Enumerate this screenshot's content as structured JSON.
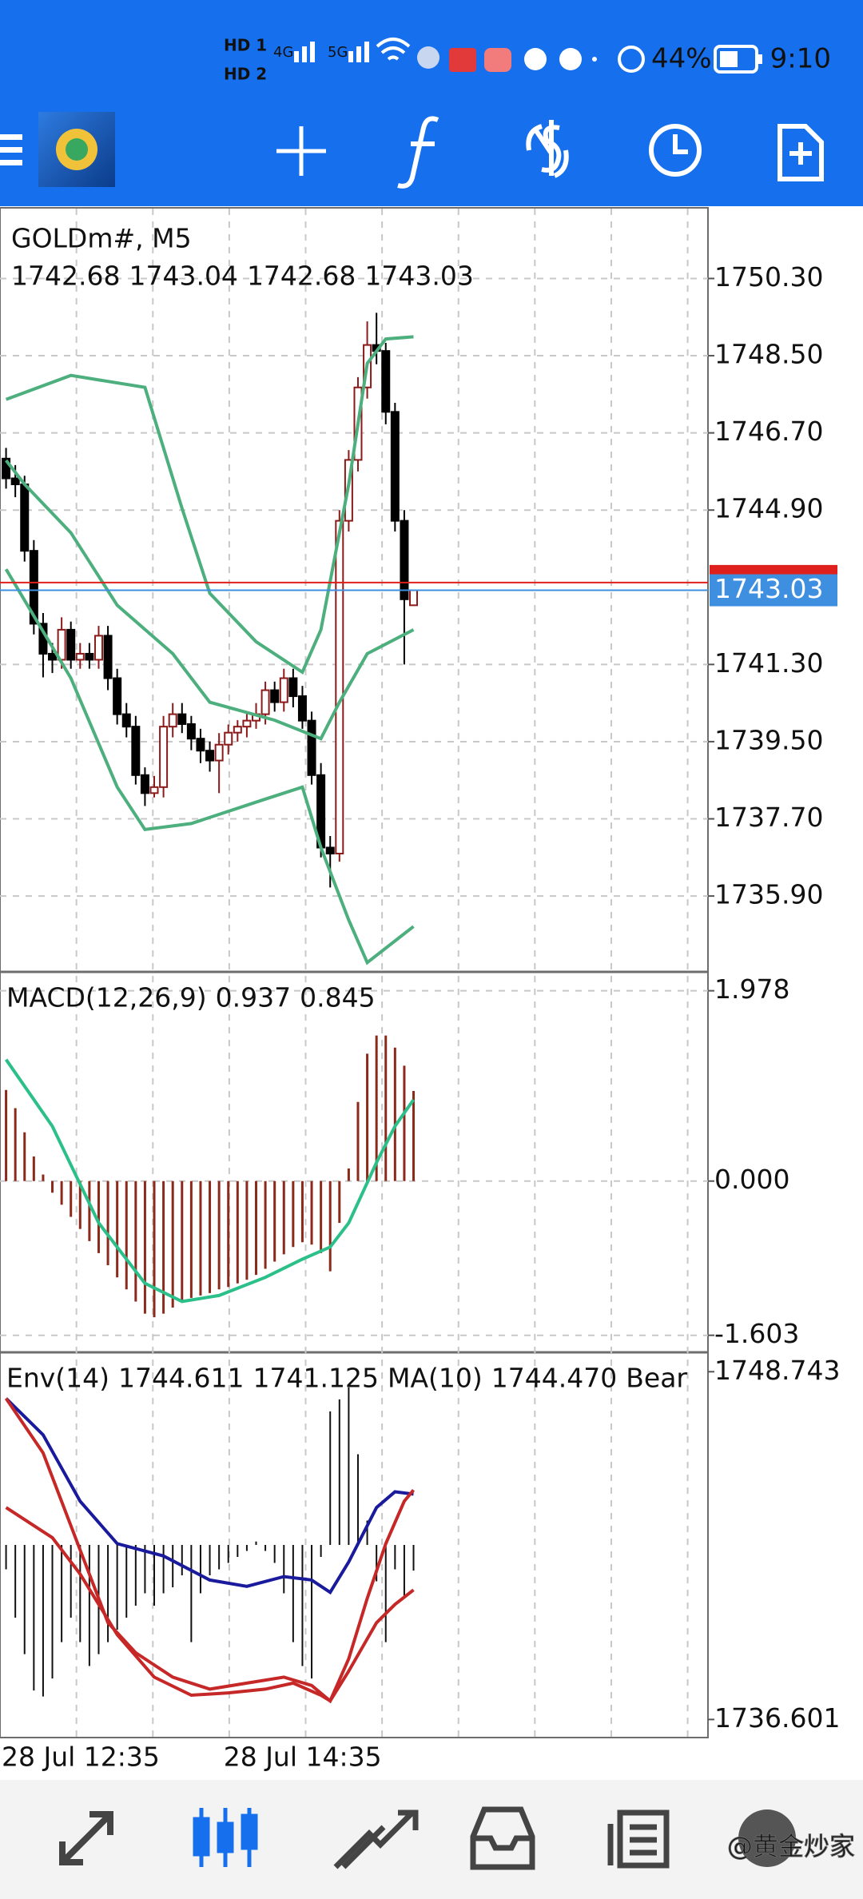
{
  "status": {
    "time": "9:10",
    "battery": "44%",
    "sim1": "HD 1",
    "sim2": "HD 2",
    "net1": "4G",
    "net2": "5G"
  },
  "watermark": "@黄金炒家",
  "chart_data": {
    "type": "candlestick",
    "title": "GOLDm#, M5",
    "open": [
      1746.1,
      1745.64,
      1745.5,
      1743.95,
      1742.25,
      1741.55,
      1741.41,
      1742.11,
      1741.41,
      1741.55,
      1741.41,
      1741.97,
      1740.98,
      1740.14,
      1739.85,
      1738.72,
      1738.3,
      1738.44,
      1739.85,
      1740.14,
      1739.91,
      1739.57,
      1739.29,
      1739.06,
      1739.43,
      1739.71,
      1739.85,
      1739.99,
      1740.14,
      1740.7,
      1740.42,
      1740.98,
      1740.56,
      1739.99,
      1738.72,
      1737.03,
      1736.89,
      1744.65,
      1746.07,
      1747.76,
      1748.75,
      1748.61,
      1747.19,
      1744.65,
      1742.68
    ],
    "high": [
      1746.35,
      1745.95,
      1745.7,
      1744.2,
      1742.5,
      1741.8,
      1742.4,
      1742.3,
      1741.8,
      1741.8,
      1742.2,
      1742.2,
      1741.2,
      1740.4,
      1740.1,
      1738.9,
      1738.7,
      1740.1,
      1740.4,
      1740.4,
      1740.1,
      1739.8,
      1739.5,
      1739.7,
      1739.9,
      1740.0,
      1740.2,
      1740.4,
      1740.9,
      1740.9,
      1741.2,
      1741.2,
      1740.8,
      1740.2,
      1739.0,
      1737.3,
      1744.9,
      1746.3,
      1748.0,
      1749.3,
      1749.5,
      1748.8,
      1747.4,
      1744.9,
      1743.04
    ],
    "low": [
      1745.4,
      1745.2,
      1743.7,
      1742.0,
      1741.0,
      1741.1,
      1741.2,
      1741.2,
      1741.2,
      1741.2,
      1741.2,
      1740.7,
      1739.9,
      1739.6,
      1738.5,
      1738.0,
      1738.2,
      1738.2,
      1739.6,
      1739.7,
      1739.3,
      1739.0,
      1738.8,
      1738.3,
      1739.2,
      1739.5,
      1739.6,
      1739.8,
      1739.9,
      1740.2,
      1740.2,
      1740.3,
      1739.8,
      1738.5,
      1736.8,
      1736.1,
      1736.7,
      1744.4,
      1745.8,
      1747.5,
      1748.3,
      1746.9,
      1744.4,
      1741.3,
      1742.68
    ],
    "close": [
      1745.64,
      1745.5,
      1743.95,
      1742.25,
      1741.55,
      1741.41,
      1742.11,
      1741.41,
      1741.55,
      1741.41,
      1741.97,
      1740.98,
      1740.14,
      1739.85,
      1738.72,
      1738.3,
      1738.44,
      1739.85,
      1740.14,
      1739.91,
      1739.57,
      1739.29,
      1739.06,
      1739.43,
      1739.71,
      1739.85,
      1739.99,
      1740.14,
      1740.7,
      1740.42,
      1740.98,
      1740.56,
      1739.99,
      1738.72,
      1737.03,
      1736.89,
      1744.65,
      1746.07,
      1747.76,
      1748.75,
      1748.61,
      1747.19,
      1744.65,
      1742.82,
      1743.03
    ],
    "bull_color": "#8b1a1a",
    "bear_color": "#000000",
    "ylim": [
      1734.15,
      1751.93
    ],
    "yticks": [
      {
        "value": 1750.3,
        "label": "1750.30"
      },
      {
        "value": 1748.5,
        "label": "1748.50"
      },
      {
        "value": 1746.7,
        "label": "1746.70"
      },
      {
        "value": 1744.9,
        "label": "1744.90"
      },
      {
        "value": 1741.3,
        "label": "1741.30"
      },
      {
        "value": 1739.5,
        "label": "1739.50"
      },
      {
        "value": 1737.7,
        "label": "1737.70"
      },
      {
        "value": 1735.9,
        "label": "1735.90"
      }
    ],
    "grid": true,
    "ask_line": 1743.21,
    "ask_color": "#e0201c",
    "bid_color": "#3f8fe0",
    "xgrid": [
      7.6,
      15.85,
      24.1,
      32.35,
      40.6,
      48.85,
      57.1,
      65.35,
      73.6
    ],
    "x_labels": [
      {
        "index": 0,
        "label": "28 Jul 12:35"
      },
      {
        "index": 24,
        "label": "28 Jul 14:35"
      }
    ],
    "bands": [
      {
        "color": "#4caf7d",
        "x": [
          0,
          7,
          15,
          19,
          22,
          27,
          32,
          34,
          37,
          39,
          41,
          44
        ],
        "values": [
          1747.48,
          1748.04,
          1747.76,
          1744.94,
          1742.96,
          1741.83,
          1741.12,
          1742.11,
          1745.5,
          1748.32,
          1748.89,
          1748.94
        ]
      },
      {
        "color": "#4caf7d",
        "x": [
          0,
          2,
          7,
          12,
          18,
          22,
          29,
          34,
          36,
          39,
          44
        ],
        "values": [
          1746.06,
          1745.5,
          1744.37,
          1742.68,
          1741.55,
          1740.42,
          1740.0,
          1739.57,
          1740.42,
          1741.55,
          1742.11
        ]
      },
      {
        "color": "#4caf7d",
        "x": [
          0,
          7,
          12,
          15,
          20,
          28,
          32,
          34,
          37,
          39,
          44
        ],
        "values": [
          1743.52,
          1740.98,
          1738.44,
          1737.45,
          1737.59,
          1738.16,
          1738.44,
          1737.03,
          1735.34,
          1734.35,
          1735.19
        ]
      }
    ],
    "macd": {
      "label": "MACD(12,26,9)",
      "ylim": [
        -1.78,
        2.166
      ],
      "yticks": [
        1.978,
        {
          "value": 0,
          "label": "0.000"
        },
        -1.603
      ],
      "histogram": {
        "color": "#8b2a1a",
        "values": [
          0.947,
          0.758,
          0.507,
          0.256,
          0.068,
          -0.121,
          -0.246,
          -0.372,
          -0.498,
          -0.624,
          -0.749,
          -0.875,
          -1.001,
          -1.126,
          -1.252,
          -1.378,
          -1.415,
          -1.378,
          -1.315,
          -1.252,
          -1.214,
          -1.189,
          -1.164,
          -1.126,
          -1.101,
          -1.063,
          -1.026,
          -0.975,
          -0.912,
          -0.837,
          -0.761,
          -0.686,
          -0.636,
          -0.661,
          -0.749,
          -0.938,
          -0.435,
          0.131,
          0.822,
          1.324,
          1.513,
          1.513,
          1.387,
          1.199,
          0.937
        ]
      },
      "signal": {
        "color": "#2bbf8a",
        "x": [
          0,
          5,
          10,
          15,
          19,
          23,
          28,
          32,
          35,
          37,
          40,
          42,
          44
        ],
        "values": [
          1.263,
          0.57,
          -0.435,
          -1.063,
          -1.252,
          -1.189,
          -1.001,
          -0.812,
          -0.686,
          -0.435,
          0.193,
          0.57,
          0.845
        ]
      }
    },
    "env": {
      "label": "Env(14)",
      "ma_label": "MA(10)",
      "tail": "Bear",
      "ylim": [
        1735.97,
        1749.42
      ],
      "yticks": [
        1748.743,
        1736.601
      ],
      "upper": {
        "color": "#c62828",
        "x": [
          0,
          4,
          8,
          11,
          14,
          18,
          22,
          26,
          30,
          33,
          35,
          37,
          39,
          41,
          43,
          44
        ],
        "values": [
          1747.81,
          1745.91,
          1742.52,
          1739.98,
          1738.93,
          1738.08,
          1737.66,
          1737.87,
          1738.08,
          1737.79,
          1737.25,
          1738.72,
          1740.83,
          1742.74,
          1744.22,
          1744.611
        ]
      },
      "lower": {
        "color": "#c62828",
        "x": [
          0,
          5,
          8,
          12,
          16,
          20,
          24,
          28,
          31,
          34,
          35,
          37,
          40,
          42,
          44
        ],
        "values": [
          1744.0,
          1742.95,
          1741.68,
          1739.56,
          1738.08,
          1737.45,
          1737.53,
          1737.66,
          1737.87,
          1737.45,
          1737.25,
          1738.29,
          1739.98,
          1740.62,
          1741.125
        ]
      },
      "ma": {
        "color": "#1a1a9c",
        "x": [
          0,
          4,
          8,
          12,
          17,
          22,
          26,
          30,
          33,
          35,
          37,
          40,
          42,
          44
        ],
        "values": [
          1747.81,
          1746.54,
          1744.22,
          1742.74,
          1742.31,
          1741.47,
          1741.25,
          1741.59,
          1741.47,
          1741.04,
          1742.1,
          1744.0,
          1744.55,
          1744.47
        ],
        "value_labels": [
          null,
          null,
          null,
          null,
          null,
          null,
          null,
          null,
          null,
          null,
          null,
          null,
          null,
          "1744.470"
        ]
      },
      "bears": {
        "color": "#111111",
        "ylim": [
          -4.5,
          4.5
        ],
        "values": [
          -0.57,
          -1.7,
          -2.55,
          -3.4,
          -3.54,
          -3.12,
          -2.27,
          -1.7,
          -2.27,
          -2.83,
          -2.55,
          -2.27,
          -1.98,
          -1.7,
          -1.42,
          -1.13,
          -1.42,
          -1.13,
          -0.99,
          -0.71,
          -2.27,
          -1.13,
          -0.71,
          -0.57,
          -0.42,
          -0.28,
          -0.14,
          0.08,
          -0.14,
          -0.42,
          -1.13,
          -2.27,
          -2.83,
          -3.12,
          -0.28,
          3.12,
          3.4,
          3.68,
          2.12,
          0.57,
          -0.85,
          -2.27,
          -0.57,
          -1.2,
          -0.6
        ]
      }
    }
  }
}
